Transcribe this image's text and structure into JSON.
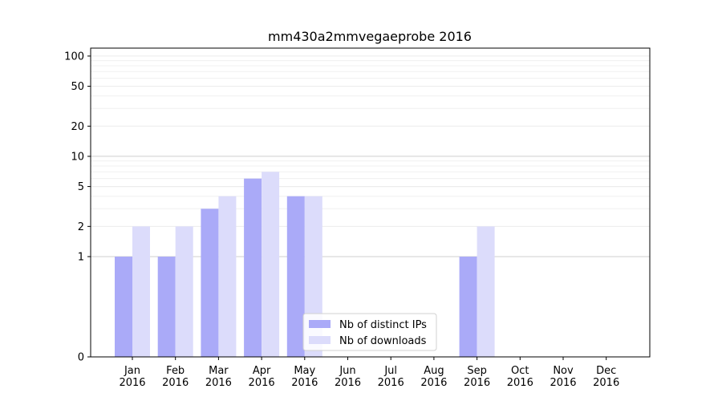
{
  "chart_data": {
    "type": "bar",
    "title": "mm430a2mmvegaeprobe 2016",
    "xlabel": "",
    "ylabel": "",
    "y_scale": "symlog",
    "ylim": [
      0,
      120
    ],
    "y_ticks": [
      0,
      1,
      2,
      5,
      10,
      20,
      50,
      100
    ],
    "categories": [
      "Jan\n2016",
      "Feb\n2016",
      "Mar\n2016",
      "Apr\n2016",
      "May\n2016",
      "Jun\n2016",
      "Jul\n2016",
      "Aug\n2016",
      "Sep\n2016",
      "Oct\n2016",
      "Nov\n2016",
      "Dec\n2016"
    ],
    "series": [
      {
        "name": "Nb of distinct IPs",
        "color": "#aaaaf8",
        "values": [
          1,
          1,
          3,
          6,
          4,
          0,
          0,
          0,
          1,
          0,
          0,
          0
        ]
      },
      {
        "name": "Nb of downloads",
        "color": "#dcdcfb",
        "values": [
          2,
          2,
          4,
          7,
          4,
          0,
          0,
          0,
          2,
          0,
          0,
          0
        ]
      }
    ],
    "legend_position": "bottom-center",
    "grid": true
  }
}
